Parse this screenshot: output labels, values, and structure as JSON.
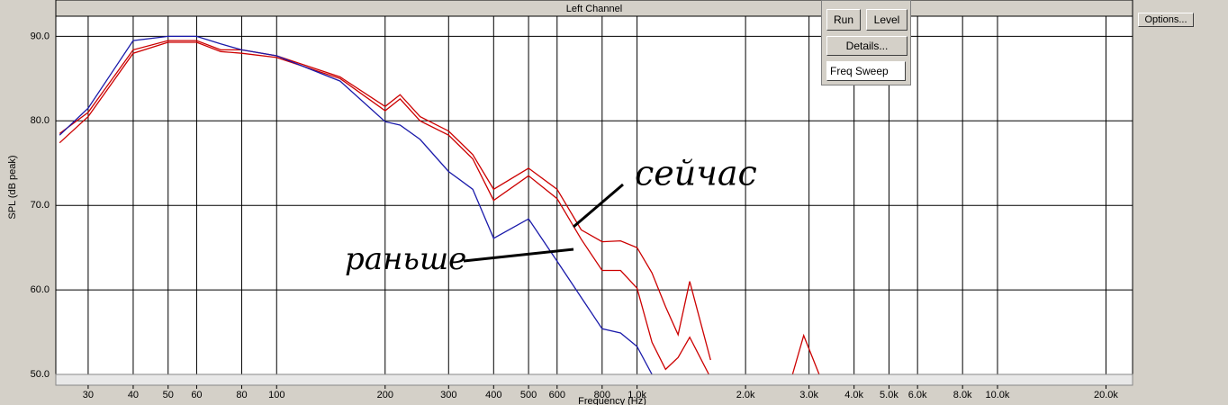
{
  "chart_data": {
    "type": "line",
    "title": "Left Channel",
    "x_label": "Frequency (Hz)",
    "y_label": "SPL (dB peak)",
    "log_x": true,
    "grid": true,
    "xlim": [
      24.4,
      23700
    ],
    "ylim": [
      50,
      94.3
    ],
    "xticks": [
      30,
      40,
      50,
      60,
      80,
      100,
      200,
      300,
      400,
      500,
      600,
      800,
      {
        "value": 1000,
        "label": "1.0k"
      },
      {
        "value": 2000,
        "label": "2.0k"
      },
      {
        "value": 3000,
        "label": "3.0k"
      },
      {
        "value": 4000,
        "label": "4.0k"
      },
      {
        "value": 5000,
        "label": "5.0k"
      },
      {
        "value": 6000,
        "label": "6.0k"
      },
      {
        "value": 8000,
        "label": "8.0k"
      },
      {
        "value": 10000,
        "label": "10.0k"
      },
      {
        "value": 20000,
        "label": "20.0k"
      }
    ],
    "yticks": [
      {
        "value": 50,
        "label": "50.0"
      },
      {
        "value": 60,
        "label": "60.0"
      },
      {
        "value": 70,
        "label": "70.0"
      },
      {
        "value": 80,
        "label": "80.0"
      },
      {
        "value": 90,
        "label": "90.0"
      }
    ],
    "x": [
      25,
      30,
      40,
      50,
      60,
      70,
      80,
      100,
      150,
      200,
      220,
      250,
      300,
      350,
      400,
      500,
      600,
      700,
      800,
      900,
      1000,
      1100,
      1200,
      1300,
      1400,
      1600,
      2700,
      2900,
      3200
    ],
    "series": [
      {
        "color": "#cc0000",
        "values": [
          78.5,
          81,
          88.4,
          89.5,
          89.5,
          88.4,
          88.4,
          87.7,
          85.2,
          81.7,
          83.1,
          80.5,
          78.8,
          76,
          71.9,
          74.4,
          71.9,
          67.1,
          65.7,
          65.8,
          65,
          62,
          58,
          54.7,
          61,
          51.7,
          null,
          null,
          null
        ]
      },
      {
        "color": "#cc0000",
        "values": [
          77.4,
          80.5,
          88,
          89.3,
          89.3,
          88.2,
          88,
          87.5,
          85,
          81.2,
          82.6,
          80,
          78.3,
          75.5,
          70.6,
          73.5,
          70.8,
          66,
          62.3,
          62.3,
          60.2,
          53.8,
          50.6,
          52,
          54.4,
          49.6,
          50,
          54.6,
          50
        ]
      },
      {
        "color": "#1a1aaa",
        "values": [
          78.3,
          81.5,
          89.5,
          90,
          90,
          89.1,
          88.4,
          87.7,
          84.7,
          79.9,
          79.5,
          77.8,
          74,
          71.9,
          66.1,
          68.4,
          63.4,
          59.1,
          55.4,
          54.9,
          53.3,
          50,
          null,
          null,
          null,
          null,
          null,
          null,
          null
        ]
      }
    ],
    "annotations": [
      "сейчас",
      "раньше"
    ]
  },
  "ui": {
    "buttons": [
      "Run",
      "Level",
      "Details...",
      "Freq Sweep",
      "Options..."
    ]
  }
}
